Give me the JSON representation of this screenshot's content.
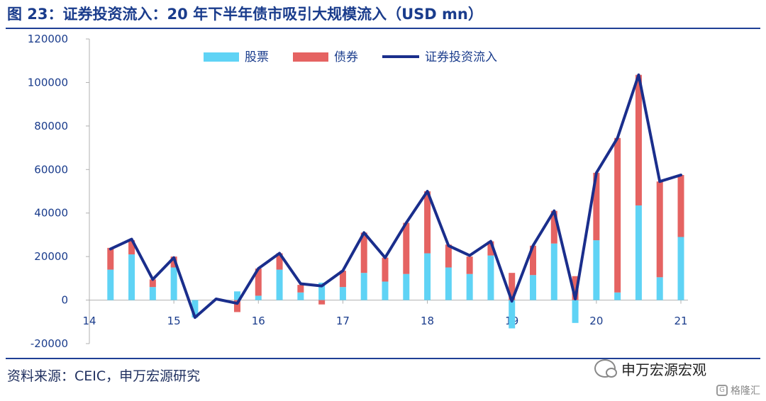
{
  "page": {
    "title": "图 23：证券投资流入：20 年下半年债市吸引大规模流入（USD mn）",
    "source": "资料来源：CEIC，申万宏源研究",
    "watermark": "申万宏源宏观",
    "corner_mark": "格隆汇",
    "corner_icon": "G"
  },
  "chart_data": {
    "type": "bar",
    "title": "证券投资流入：20 年下半年债市吸引大规模流入（USD mn）",
    "ylim": [
      -20000,
      120000
    ],
    "yticks": [
      -20000,
      0,
      20000,
      40000,
      60000,
      80000,
      100000,
      120000
    ],
    "xlim": [
      2014,
      2021
    ],
    "xticks": [
      "14",
      "15",
      "16",
      "17",
      "18",
      "19",
      "20",
      "21"
    ],
    "grid": false,
    "legend_position": "top",
    "x": [
      2014.25,
      2014.5,
      2014.75,
      2015.0,
      2015.25,
      2015.5,
      2015.75,
      2016.0,
      2016.25,
      2016.5,
      2016.75,
      2017.0,
      2017.25,
      2017.5,
      2017.75,
      2018.0,
      2018.25,
      2018.5,
      2018.75,
      2019.0,
      2019.25,
      2019.5,
      2019.75,
      2020.0,
      2020.25,
      2020.5,
      2020.75,
      2021.0
    ],
    "series": [
      {
        "name": "股票",
        "type": "bar",
        "color": "#5fd3f5",
        "values": [
          14000,
          21000,
          6000,
          15000,
          -8000,
          0,
          4000,
          2000,
          14000,
          3500,
          8000,
          6000,
          12500,
          8500,
          12000,
          21500,
          15000,
          12000,
          20500,
          -13000,
          11500,
          26000,
          -10500,
          27500,
          3500,
          43500,
          10500,
          29000
        ]
      },
      {
        "name": "债券",
        "type": "bar",
        "color": "#e56362",
        "values": [
          10000,
          6500,
          3500,
          5000,
          0,
          0,
          -5500,
          12500,
          7500,
          3500,
          -2000,
          7500,
          18500,
          11000,
          23500,
          28500,
          10500,
          8000,
          6500,
          12500,
          13500,
          15000,
          11000,
          31000,
          71000,
          60000,
          44000,
          28500
        ]
      },
      {
        "name": "证券投资流入",
        "type": "line",
        "color": "#1a2e8c",
        "values": [
          23500,
          28000,
          9500,
          19500,
          -8000,
          500,
          -1500,
          14500,
          21500,
          7500,
          6500,
          13500,
          31000,
          19500,
          35500,
          50000,
          25000,
          20500,
          27000,
          -500,
          25000,
          41000,
          500,
          58500,
          74500,
          103500,
          54500,
          57500
        ]
      }
    ]
  }
}
